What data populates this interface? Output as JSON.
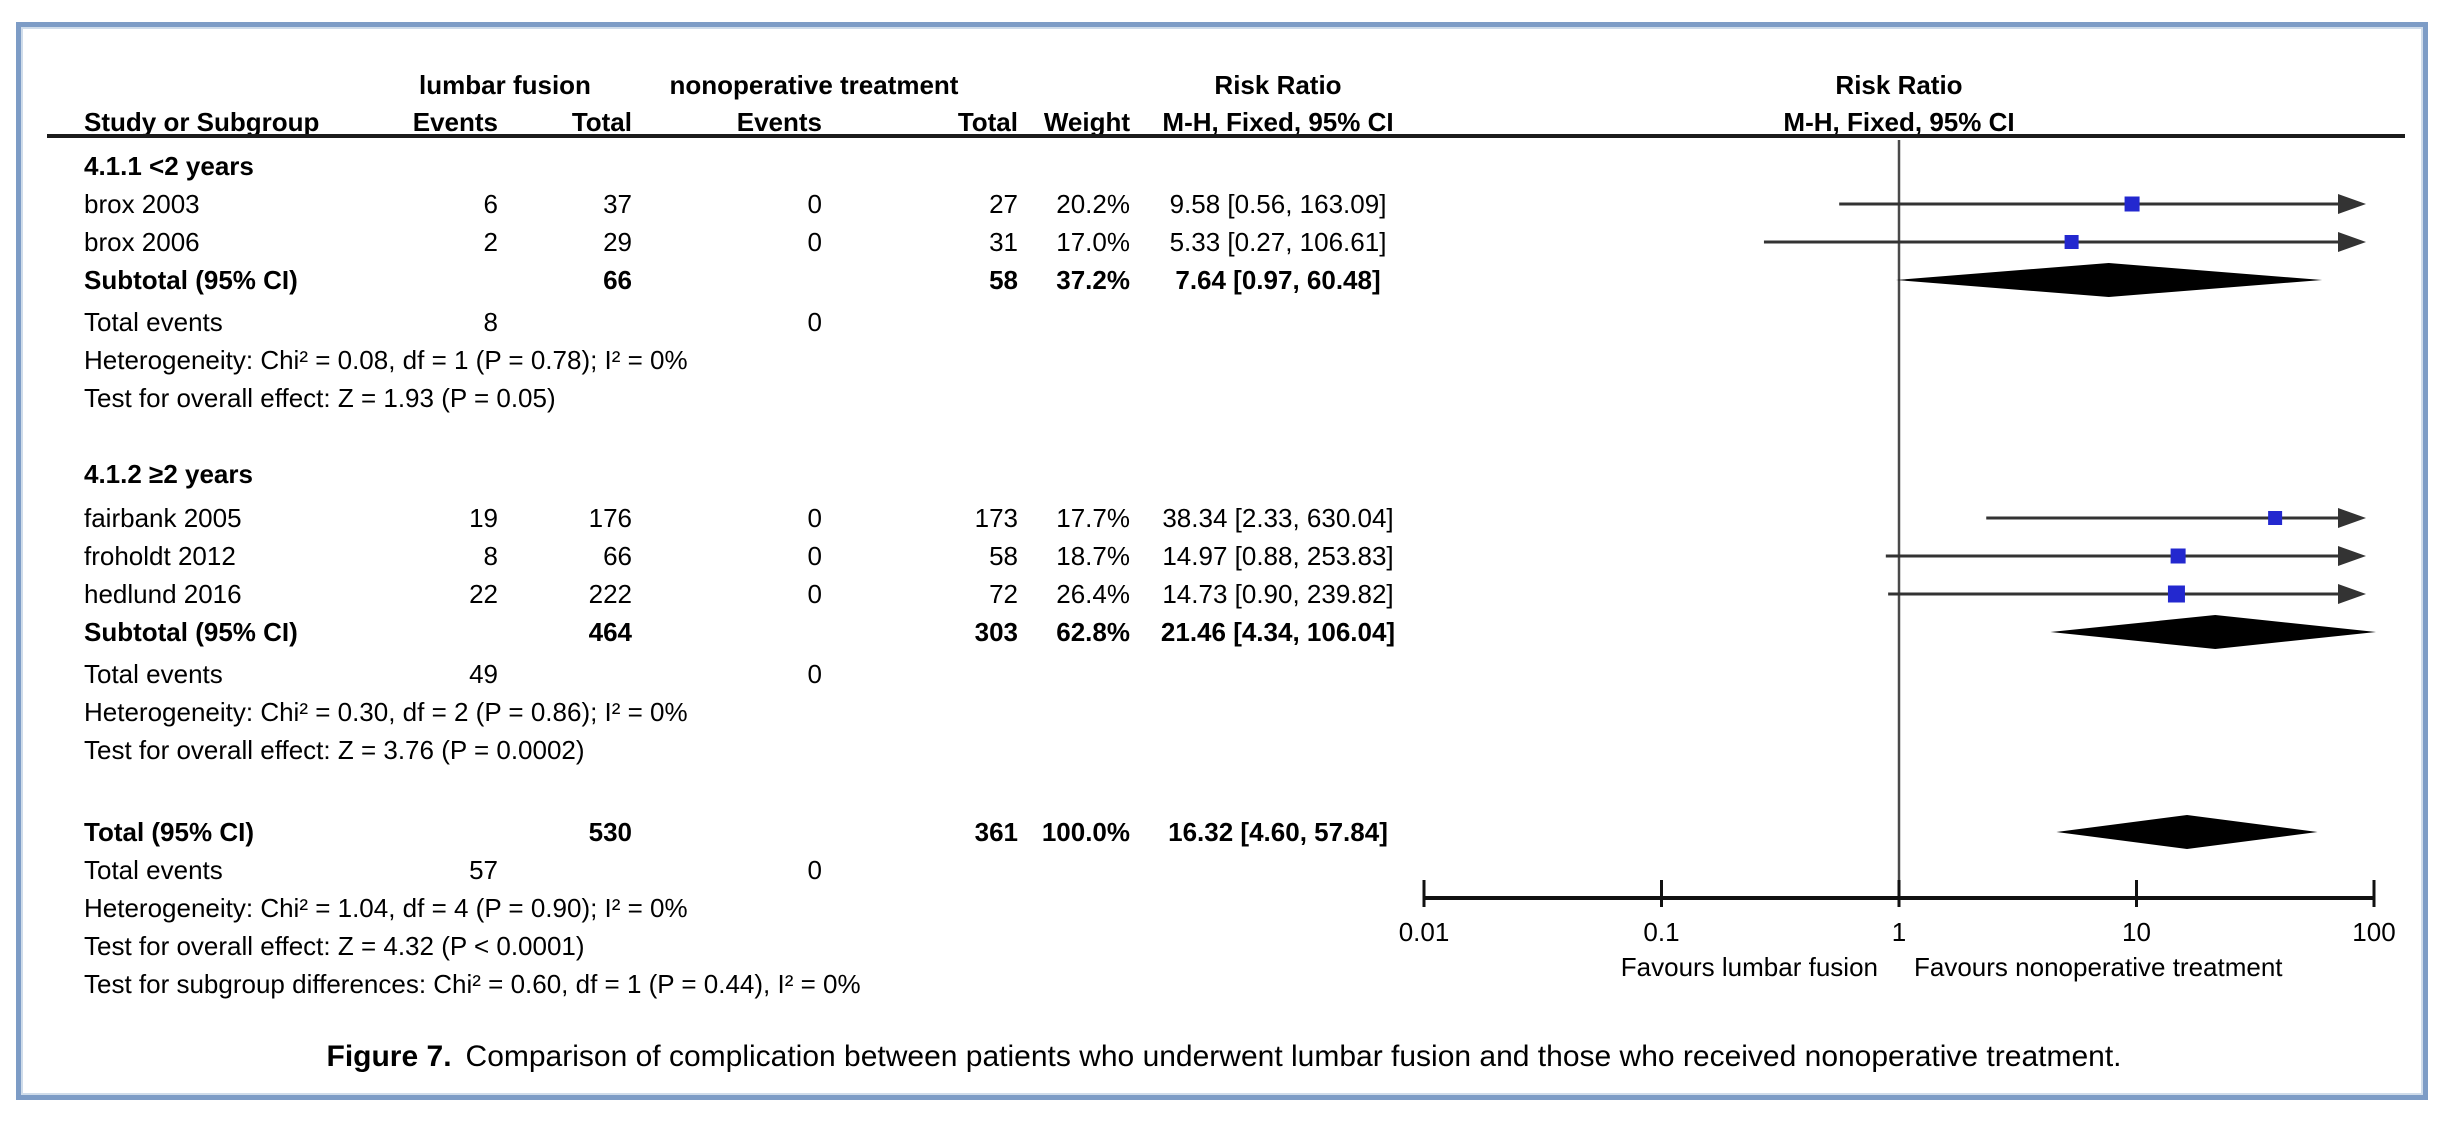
{
  "figure": {
    "caption_label": "Figure 7.",
    "caption_text": "Comparison of complication between patients who underwent lumbar fusion and those who received nonoperative treatment.",
    "border_color": "#7d9cc6"
  },
  "table": {
    "group_headers": {
      "experimental": "lumbar fusion",
      "control": "nonoperative treatment",
      "effect_left": "Risk Ratio",
      "effect_right": "Risk Ratio"
    },
    "columns": {
      "study": "Study or Subgroup",
      "events1": "Events",
      "total1": "Total",
      "events2": "Events",
      "total2": "Total",
      "weight": "Weight",
      "ci_left": "M-H, Fixed, 95% CI",
      "ci_right": "M-H, Fixed, 95% CI"
    },
    "rows": [
      {
        "kind": "section",
        "label": "4.1.1 <2 years"
      },
      {
        "kind": "study",
        "label": "brox 2003",
        "events1": "6",
        "total1": "37",
        "events2": "0",
        "total2": "27",
        "weight": "20.2%",
        "ci": "9.58 [0.56, 163.09]"
      },
      {
        "kind": "study",
        "label": "brox 2006",
        "events1": "2",
        "total1": "29",
        "events2": "0",
        "total2": "31",
        "weight": "17.0%",
        "ci": "5.33 [0.27, 106.61]"
      },
      {
        "kind": "subtotal",
        "label": "Subtotal (95% CI)",
        "total1": "66",
        "total2": "58",
        "weight": "37.2%",
        "ci": "7.64 [0.97, 60.48]"
      },
      {
        "kind": "events",
        "label": "Total events",
        "events1": "8",
        "events2": "0"
      },
      {
        "kind": "stat",
        "label": "Heterogeneity: Chi² = 0.08, df = 1 (P = 0.78); I² = 0%"
      },
      {
        "kind": "stat",
        "label": "Test for overall effect: Z = 1.93 (P = 0.05)"
      },
      {
        "kind": "section",
        "label": "4.1.2 ≥2 years"
      },
      {
        "kind": "study",
        "label": "fairbank 2005",
        "events1": "19",
        "total1": "176",
        "events2": "0",
        "total2": "173",
        "weight": "17.7%",
        "ci": "38.34 [2.33, 630.04]"
      },
      {
        "kind": "study",
        "label": "froholdt 2012",
        "events1": "8",
        "total1": "66",
        "events2": "0",
        "total2": "58",
        "weight": "18.7%",
        "ci": "14.97 [0.88, 253.83]"
      },
      {
        "kind": "study",
        "label": "hedlund 2016",
        "events1": "22",
        "total1": "222",
        "events2": "0",
        "total2": "72",
        "weight": "26.4%",
        "ci": "14.73 [0.90, 239.82]"
      },
      {
        "kind": "subtotal",
        "label": "Subtotal (95% CI)",
        "total1": "464",
        "total2": "303",
        "weight": "62.8%",
        "ci": "21.46 [4.34, 106.04]"
      },
      {
        "kind": "events",
        "label": "Total events",
        "events1": "49",
        "events2": "0"
      },
      {
        "kind": "stat",
        "label": "Heterogeneity: Chi² = 0.30, df = 2 (P = 0.86); I² = 0%"
      },
      {
        "kind": "stat",
        "label": "Test for overall effect: Z = 3.76 (P = 0.0002)"
      },
      {
        "kind": "subtotal",
        "label": "Total (95% CI)",
        "total1": "530",
        "total2": "361",
        "weight": "100.0%",
        "ci": "16.32 [4.60, 57.84]"
      },
      {
        "kind": "events",
        "label": "Total events",
        "events1": "57",
        "events2": "0"
      },
      {
        "kind": "stat",
        "label": "Heterogeneity: Chi² = 1.04, df = 4 (P = 0.90); I² = 0%"
      },
      {
        "kind": "stat",
        "label": "Test for overall effect: Z = 4.32 (P < 0.0001)"
      },
      {
        "kind": "stat",
        "label": "Test for subgroup differences: Chi² = 0.60, df = 1 (P = 0.44), I² = 0%"
      }
    ]
  },
  "chart_data": {
    "type": "forest",
    "effect_measure": "Risk Ratio",
    "method": "M-H, Fixed, 95% CI",
    "x_scale": "log",
    "x_ticks": [
      0.01,
      0.1,
      1,
      10,
      100
    ],
    "x_tick_labels": [
      "0.01",
      "0.1",
      "1",
      "10",
      "100"
    ],
    "null_line": 1,
    "favours_left": "Favours lumbar fusion",
    "favours_right": "Favours nonoperative treatment",
    "marker_color": "#2328cf",
    "line_color": "#333333",
    "studies": [
      {
        "label": "brox 2003",
        "rr": 9.58,
        "lo": 0.56,
        "hi": 163.09,
        "weight": 20.2,
        "row": 1
      },
      {
        "label": "brox 2006",
        "rr": 5.33,
        "lo": 0.27,
        "hi": 106.61,
        "weight": 17.0,
        "row": 2
      },
      {
        "label": "fairbank 2005",
        "rr": 38.34,
        "lo": 2.33,
        "hi": 630.04,
        "weight": 17.7,
        "row": 8
      },
      {
        "label": "froholdt 2012",
        "rr": 14.97,
        "lo": 0.88,
        "hi": 253.83,
        "weight": 18.7,
        "row": 9
      },
      {
        "label": "hedlund 2016",
        "rr": 14.73,
        "lo": 0.9,
        "hi": 239.82,
        "weight": 26.4,
        "row": 10
      }
    ],
    "diamonds": [
      {
        "label": "Subtotal <2 years",
        "rr": 7.64,
        "lo": 0.97,
        "hi": 60.48,
        "row": 3
      },
      {
        "label": "Subtotal ≥2 years",
        "rr": 21.46,
        "lo": 4.34,
        "hi": 106.04,
        "row": 11
      },
      {
        "label": "Total",
        "rr": 16.32,
        "lo": 4.6,
        "hi": 57.84,
        "row": 15
      }
    ]
  }
}
